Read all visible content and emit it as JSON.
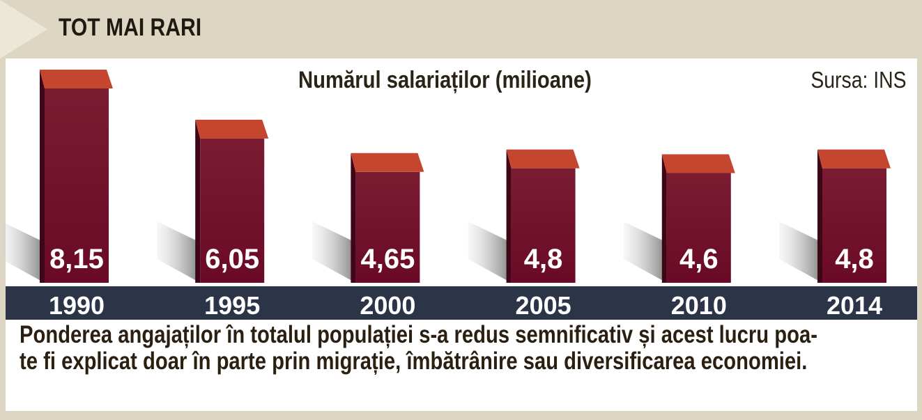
{
  "header": {
    "title": "TOT MAI RARI"
  },
  "chart_data": {
    "type": "bar",
    "title": "Numărul salariaților (milioane)",
    "source": "Sursa: INS",
    "categories": [
      "1990",
      "1995",
      "2000",
      "2005",
      "2010",
      "2014"
    ],
    "values": [
      8.15,
      6.05,
      4.65,
      4.8,
      4.6,
      4.8
    ],
    "value_labels": [
      "8,15",
      "6,05",
      "4,65",
      "4,8",
      "4,6",
      "4,8"
    ],
    "xlabel": "",
    "ylabel": "",
    "grid": false,
    "colors": {
      "bar_front": "#6e0f2a",
      "bar_top": "#c4462e",
      "axis_band": "#2c3548",
      "shadow": "#8a8a8a"
    }
  },
  "caption": {
    "line1": "Ponderea angajaților în totalul populației s-a redus semnificativ și acest lucru poa-",
    "line2": "te fi explicat doar în parte prin migrație, îmbătrânire sau diversificarea economiei."
  }
}
